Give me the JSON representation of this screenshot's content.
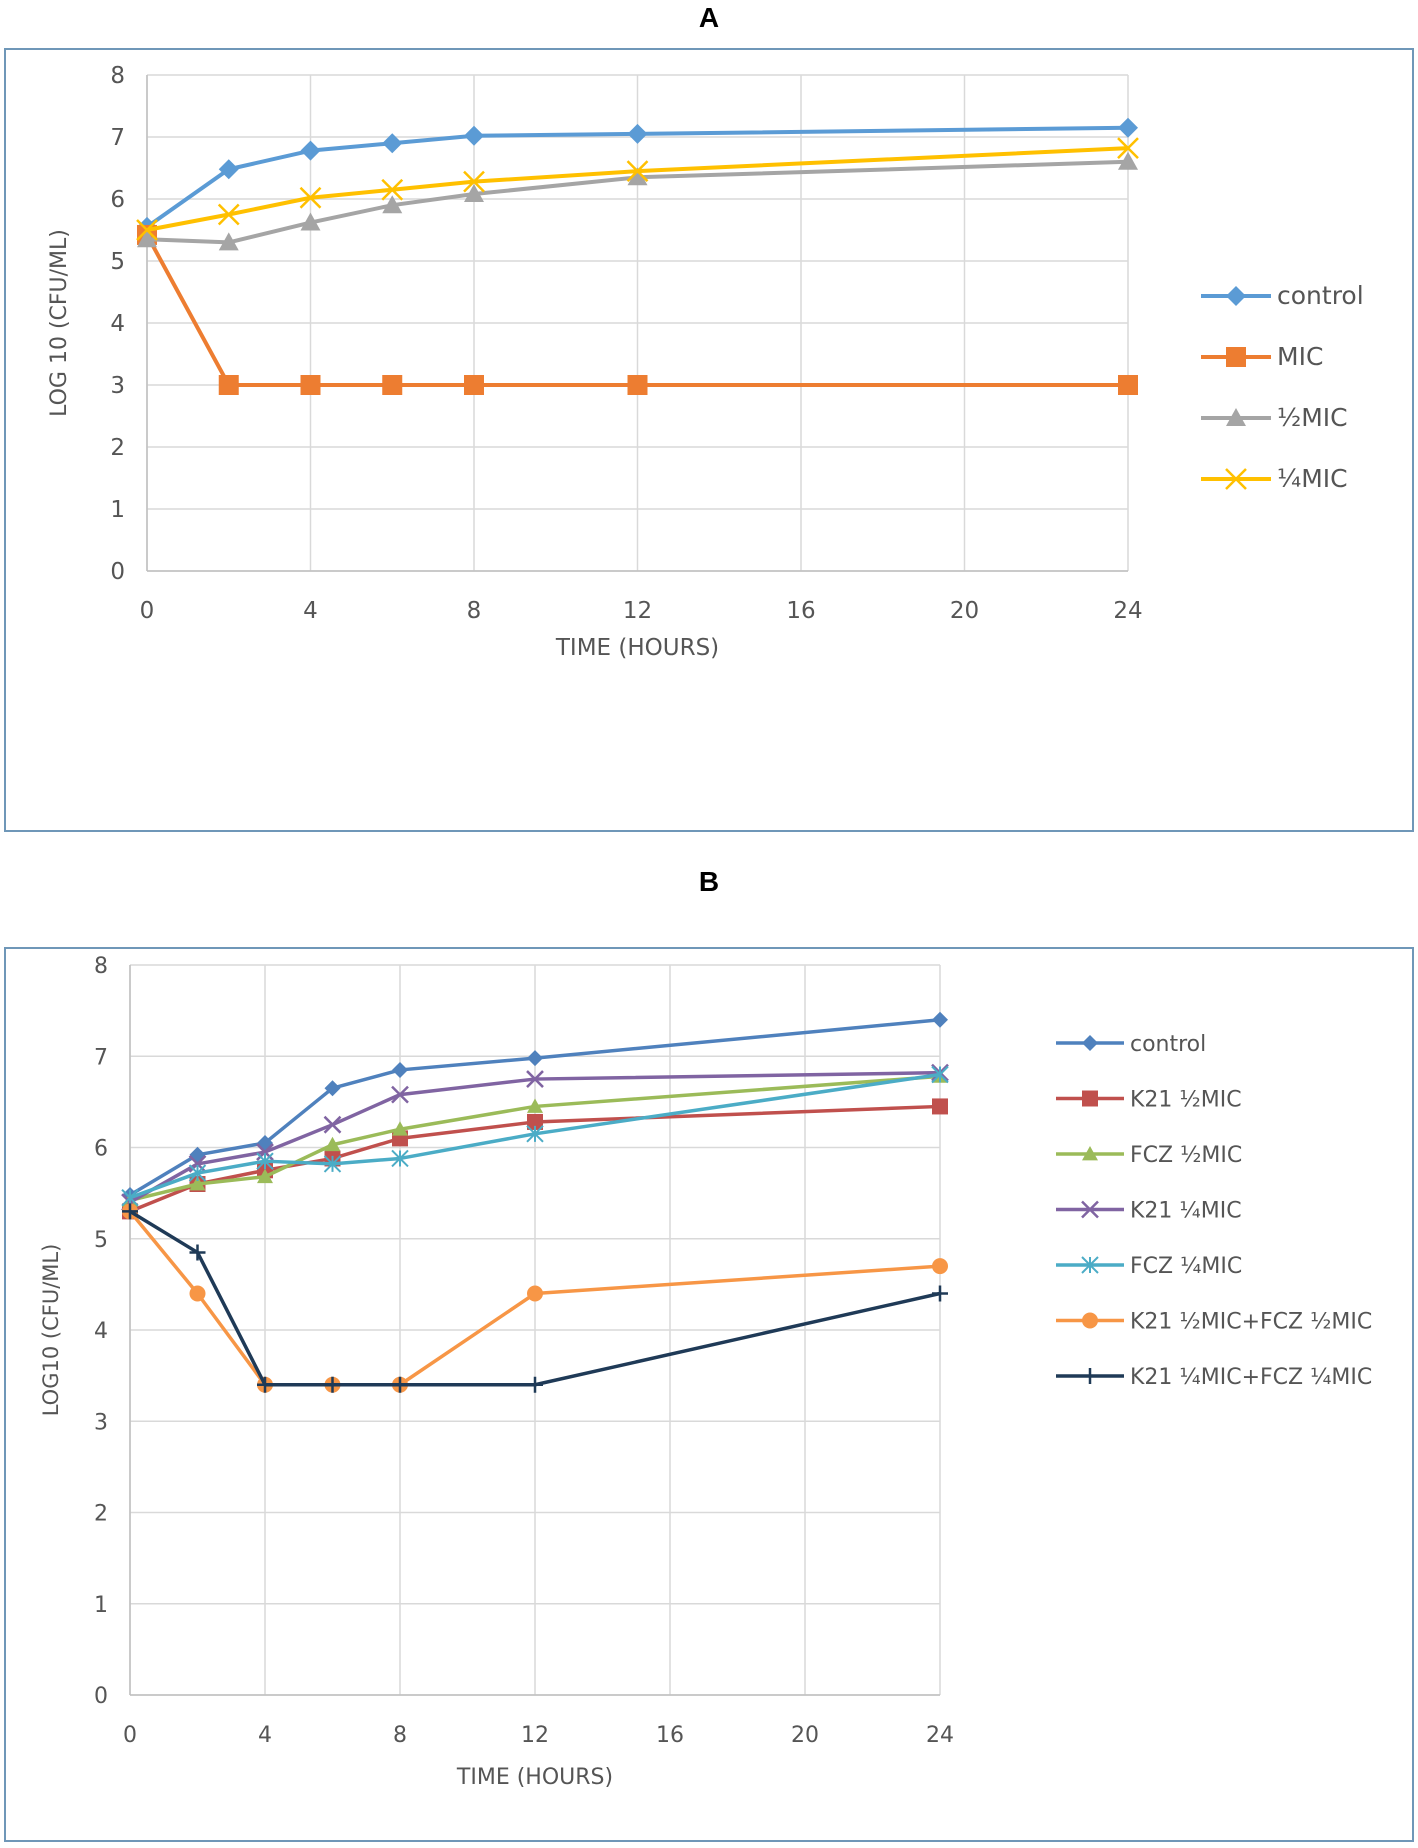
{
  "panels": {
    "a_label": "A",
    "b_label": "B"
  },
  "chart_data": [
    {
      "type": "line",
      "title": "A",
      "xlabel": "TIME (HOURS)",
      "ylabel": "LOG 10 (CFU/ML)",
      "xlim": [
        0,
        24
      ],
      "ylim": [
        0,
        8
      ],
      "xticks": [
        0,
        4,
        8,
        12,
        16,
        20,
        24
      ],
      "yticks": [
        0,
        1,
        2,
        3,
        4,
        5,
        6,
        7,
        8
      ],
      "grid": true,
      "legend_position": "right",
      "series": [
        {
          "name": "control",
          "color": "#5b9bd5",
          "marker": "diamond",
          "x": [
            0,
            2,
            4,
            6,
            8,
            12,
            24
          ],
          "y": [
            5.55,
            6.48,
            6.78,
            6.9,
            7.02,
            7.05,
            7.15
          ]
        },
        {
          "name": "MIC",
          "color": "#ed7d31",
          "marker": "square",
          "x": [
            0,
            2,
            4,
            6,
            8,
            12,
            24
          ],
          "y": [
            5.42,
            3.0,
            3.0,
            3.0,
            3.0,
            3.0,
            3.0
          ]
        },
        {
          "name": "½MIC",
          "color": "#a5a5a5",
          "marker": "triangle",
          "x": [
            0,
            2,
            4,
            6,
            8,
            12,
            24
          ],
          "y": [
            5.35,
            5.3,
            5.62,
            5.9,
            6.08,
            6.35,
            6.6
          ]
        },
        {
          "name": "¼MIC",
          "color": "#ffc000",
          "marker": "x",
          "x": [
            0,
            2,
            4,
            6,
            8,
            12,
            24
          ],
          "y": [
            5.5,
            5.75,
            6.02,
            6.15,
            6.28,
            6.45,
            6.82
          ]
        }
      ]
    },
    {
      "type": "line",
      "title": "B",
      "xlabel": "TIME (HOURS)",
      "ylabel": "LOG10 (CFU/ML)",
      "xlim": [
        0,
        24
      ],
      "ylim": [
        0,
        8
      ],
      "xticks": [
        0,
        4,
        8,
        12,
        16,
        20,
        24
      ],
      "yticks": [
        0,
        1,
        2,
        3,
        4,
        5,
        6,
        7,
        8
      ],
      "grid": true,
      "legend_position": "right",
      "series": [
        {
          "name": "control",
          "color": "#4f81bd",
          "marker": "diamond",
          "x": [
            0,
            2,
            4,
            6,
            8,
            12,
            24
          ],
          "y": [
            5.48,
            5.92,
            6.05,
            6.65,
            6.85,
            6.98,
            7.4
          ]
        },
        {
          "name": "K21 ½MIC",
          "color": "#c0504d",
          "marker": "square",
          "x": [
            0,
            2,
            4,
            6,
            8,
            12,
            24
          ],
          "y": [
            5.3,
            5.6,
            5.75,
            5.88,
            6.1,
            6.28,
            6.45
          ]
        },
        {
          "name": "FCZ ½MIC",
          "color": "#9bbb59",
          "marker": "triangle",
          "x": [
            0,
            2,
            4,
            6,
            8,
            12,
            24
          ],
          "y": [
            5.42,
            5.6,
            5.68,
            6.03,
            6.2,
            6.45,
            6.78
          ]
        },
        {
          "name": "K21 ¼MIC",
          "color": "#8064a2",
          "marker": "x",
          "x": [
            0,
            2,
            4,
            6,
            8,
            12,
            24
          ],
          "y": [
            5.4,
            5.82,
            5.95,
            6.25,
            6.58,
            6.75,
            6.82
          ]
        },
        {
          "name": "FCZ ¼MIC",
          "color": "#4bacc6",
          "marker": "asterisk",
          "x": [
            0,
            2,
            4,
            6,
            8,
            12,
            24
          ],
          "y": [
            5.45,
            5.72,
            5.85,
            5.82,
            5.88,
            6.15,
            6.8
          ]
        },
        {
          "name": "K21 ½MIC+FCZ ½MIC",
          "color": "#f79646",
          "marker": "circle",
          "x": [
            0,
            2,
            4,
            6,
            8,
            12,
            24
          ],
          "y": [
            5.3,
            4.4,
            3.4,
            3.4,
            3.4,
            4.4,
            4.7
          ]
        },
        {
          "name": "K21 ¼MIC+FCZ ¼MIC",
          "color": "#1f3a57",
          "marker": "plus",
          "x": [
            0,
            2,
            4,
            6,
            8,
            12,
            24
          ],
          "y": [
            5.3,
            4.85,
            3.4,
            3.4,
            3.4,
            3.4,
            4.4
          ]
        }
      ]
    }
  ]
}
